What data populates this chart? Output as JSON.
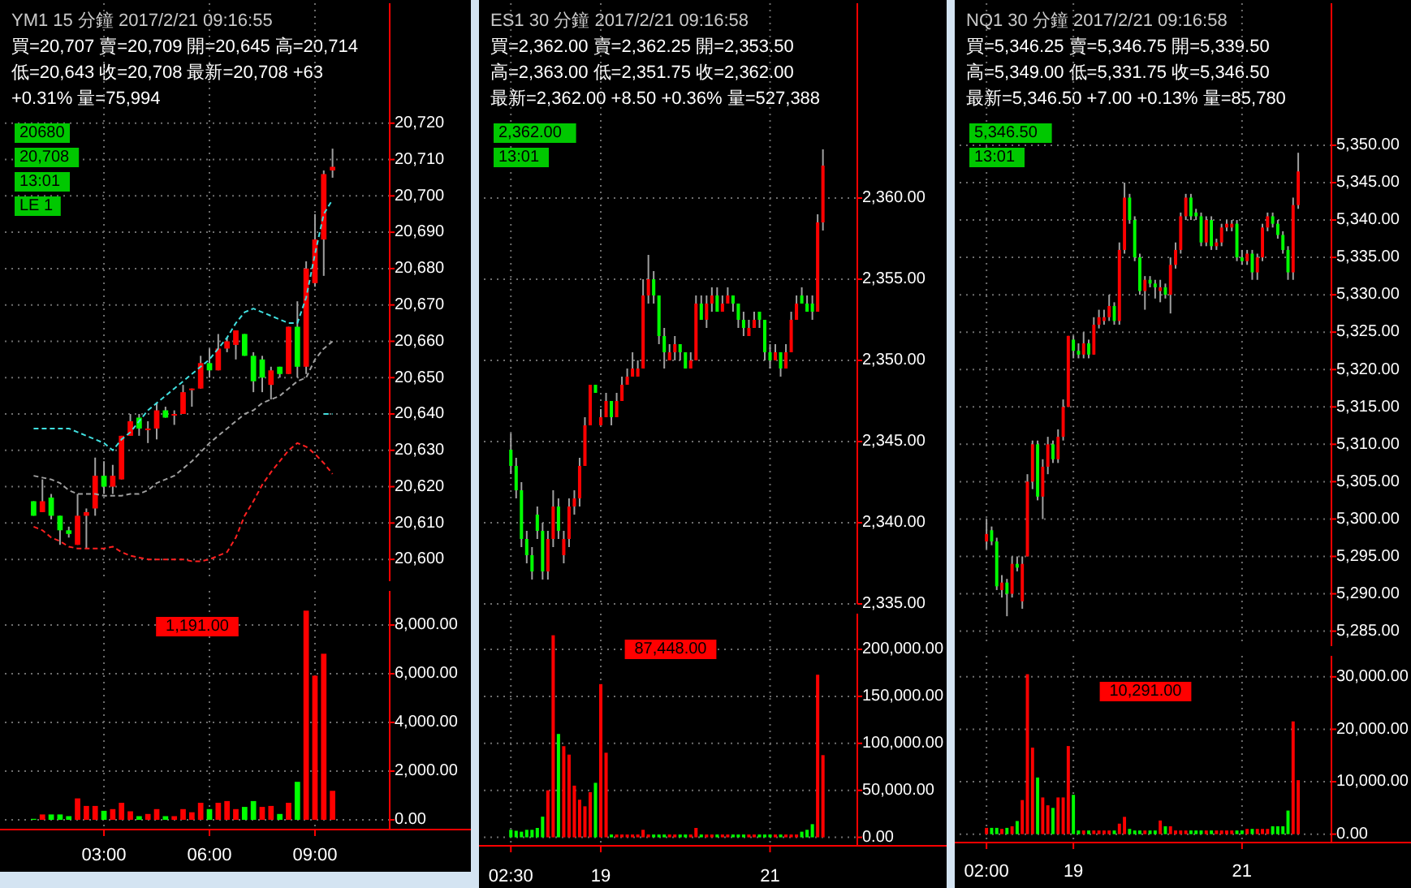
{
  "chart_data": [
    {
      "type": "other",
      "title": "YM1 15 分鐘 2017/2/21 09:16:55",
      "annotations": [
        "買=20,707 賣=20,709 開=20,645 高=20,714",
        "低=20,643 收=20,708 最新=20,708 +63",
        "+0.31% 量=75,994"
      ]
    },
    {
      "type": "candlestick",
      "annotations": [
        "20680",
        "20,708",
        "13:01",
        "LE 1"
      ],
      "categories": [
        null,
        null,
        null,
        null,
        null,
        null,
        null,
        null,
        null,
        null,
        null,
        null,
        null,
        null,
        null,
        null,
        null,
        null,
        null,
        null,
        null,
        null,
        null,
        null,
        null,
        null,
        null,
        null,
        null,
        null,
        null,
        null,
        null,
        null,
        null
      ],
      "ohlc": [
        [
          20616,
          20616,
          20612,
          20612
        ],
        [
          20613,
          20622,
          20613,
          20616
        ],
        [
          20617,
          20618,
          20611,
          20612
        ],
        [
          20612,
          20612,
          20604,
          20608
        ],
        [
          20608,
          20609,
          20606,
          20607
        ],
        [
          20604,
          20618,
          20604,
          20612
        ],
        [
          20612,
          20614,
          20603,
          20613
        ],
        [
          20614,
          20628,
          20612,
          20623
        ],
        [
          20623,
          20627,
          20618,
          20620
        ],
        [
          20620,
          20626,
          20618,
          20623
        ],
        [
          20622,
          20634,
          20622,
          20634
        ],
        [
          20634,
          20640,
          20634,
          20638
        ],
        [
          20639,
          20640,
          20634,
          20636
        ],
        [
          20636,
          20638,
          20632,
          20636
        ],
        [
          20636,
          20643,
          20633,
          20641
        ],
        [
          20641,
          20642,
          20639,
          20639
        ],
        [
          20640,
          20641,
          20637,
          20640
        ],
        [
          20640,
          20648,
          20640,
          20646
        ],
        [
          20647,
          20647,
          20642,
          20647
        ],
        [
          20647,
          20656,
          20647,
          20654
        ],
        [
          20654,
          20658,
          20650,
          20652
        ],
        [
          20652,
          20662,
          20652,
          20658
        ],
        [
          20658,
          20661,
          20657,
          20660
        ],
        [
          20659,
          20663,
          20655,
          20663
        ],
        [
          20662,
          20662,
          20656,
          20656
        ],
        [
          20656,
          20657,
          20646,
          20649
        ],
        [
          20655,
          20656,
          20646,
          20650
        ],
        [
          20648,
          20653,
          20644,
          20652
        ],
        [
          20653,
          20653,
          20650,
          20651
        ],
        [
          20651,
          20664,
          20651,
          20664
        ],
        [
          20664,
          20671,
          20650,
          20653
        ],
        [
          20653,
          20682,
          20651,
          20680
        ],
        [
          20676,
          20695,
          20675,
          20688
        ],
        [
          20688,
          20707,
          20678,
          20706
        ],
        [
          20707,
          20713,
          20705,
          20708
        ]
      ],
      "series": [
        {
          "type": "line",
          "color": "#40e0e0",
          "values": [
            20636,
            20636,
            20636,
            20636,
            20636,
            20635,
            20634,
            20633,
            20632,
            20630,
            20633,
            20635,
            20638,
            20641,
            20643,
            20645,
            20647,
            20649,
            20651,
            20653,
            20655,
            20658,
            20661,
            20665,
            20668,
            20669,
            20668,
            20667,
            20666,
            20665,
            20665,
            20672,
            20684,
            20695,
            20699
          ]
        },
        {
          "type": "line",
          "color": "#40e0e0",
          "values": [
            null,
            null,
            null,
            null,
            null,
            null,
            null,
            null,
            null,
            null,
            null,
            null,
            null,
            null,
            null,
            null,
            null,
            null,
            null,
            null,
            null,
            null,
            null,
            null,
            null,
            null,
            null,
            null,
            null,
            null,
            null,
            null,
            null,
            20640,
            20640
          ]
        },
        {
          "type": "line",
          "color": "#a0a0a0",
          "values": [
            20623,
            20622.5,
            20622,
            20621,
            20619,
            20618,
            20618,
            20618,
            20617.5,
            20617.5,
            20617.5,
            20618,
            20618,
            20619,
            20621,
            20622,
            20623,
            20625,
            20627,
            20629.5,
            20632,
            20634,
            20636,
            20638,
            20640,
            20641,
            20643,
            20644,
            20645,
            20647,
            20649,
            20650,
            20655,
            20658,
            20660
          ]
        },
        {
          "type": "line",
          "color": "#ff2020",
          "values": [
            20609,
            20608,
            20606,
            20605,
            20603.5,
            20603,
            20603,
            20603,
            20603,
            20603.5,
            20602,
            20601,
            20600.5,
            20600,
            20600,
            20600,
            20600,
            20600,
            20599.5,
            20599.5,
            20600,
            20601,
            20602,
            20606,
            20612,
            20616,
            20620.5,
            20624,
            20627,
            20630,
            20632,
            20631,
            20629,
            20626.5,
            20623.5
          ]
        }
      ],
      "line_style": "dashed",
      "ylim": [
        20594,
        20753
      ],
      "yticks": [
        {
          "value": 20600,
          "label": "20,600"
        },
        {
          "value": 20610,
          "label": "20,610"
        },
        {
          "value": 20620,
          "label": "20,620"
        },
        {
          "value": 20630,
          "label": "20,630"
        },
        {
          "value": 20640,
          "label": "20,640"
        },
        {
          "value": 20650,
          "label": "20,650"
        },
        {
          "value": 20660,
          "label": "20,660"
        },
        {
          "value": 20670,
          "label": "20,670"
        },
        {
          "value": 20680,
          "label": "20,680"
        },
        {
          "value": 20690,
          "label": "20,690"
        },
        {
          "value": 20700,
          "label": "20,700"
        },
        {
          "value": 20710,
          "label": "20,710"
        },
        {
          "value": 20720,
          "label": "20,720"
        }
      ],
      "tick_labels": "y",
      "grid": true
    },
    {
      "type": "bar",
      "categories": [
        null,
        null,
        null,
        null,
        null,
        null,
        null,
        null,
        "03:00",
        null,
        null,
        null,
        null,
        null,
        null,
        null,
        null,
        null,
        null,
        null,
        "06:00",
        null,
        null,
        null,
        null,
        null,
        null,
        null,
        null,
        null,
        null,
        null,
        "09:00",
        null,
        null
      ],
      "values": [
        40,
        220,
        220,
        220,
        150,
        880,
        570,
        570,
        370,
        440,
        700,
        350,
        150,
        240,
        440,
        150,
        150,
        440,
        310,
        700,
        440,
        700,
        770,
        440,
        530,
        770,
        530,
        570,
        240,
        700,
        1560,
        8590,
        5920,
        6820,
        1191
      ],
      "colors": [
        "#00ff00",
        "#ff0000",
        "#00ff00",
        "#00ff00",
        "#00ff00",
        "#ff0000",
        "#ff0000",
        "#ff0000",
        "#00ff00",
        "#ff0000",
        "#ff0000",
        "#ff0000",
        "#00ff00",
        "#ff0000",
        "#ff0000",
        "#00ff00",
        "#ff0000",
        "#ff0000",
        "#ff0000",
        "#ff0000",
        "#00ff00",
        "#ff0000",
        "#ff0000",
        "#ff0000",
        "#00ff00",
        "#00ff00",
        "#ff0000",
        "#ff0000",
        "#00ff00",
        "#ff0000",
        "#00ff00",
        "#ff0000",
        "#ff0000",
        "#ff0000",
        "#ff0000"
      ],
      "annotations": [
        "1,191.00"
      ],
      "ylim": [
        -400,
        9400
      ],
      "yticks": [
        {
          "value": 0,
          "label": "0.00"
        },
        {
          "value": 2000,
          "label": "2,000.00"
        },
        {
          "value": 4000,
          "label": "4,000.00"
        },
        {
          "value": 6000,
          "label": "6,000.00"
        },
        {
          "value": 8000,
          "label": "8,000.00"
        }
      ],
      "grid": true
    },
    {
      "type": "other",
      "title": "ES1 30 分鐘 2017/2/21 09:16:58",
      "annotations": [
        "買=2,362.00 賣=2,362.25 開=2,353.50",
        "高=2,363.00 低=2,351.75 收=2,362.00",
        "最新=2,362.00 +8.50 +0.36% 量=527,388"
      ]
    },
    {
      "type": "candlestick",
      "annotations": [
        "2,362.00",
        "13:01"
      ],
      "categories": [
        null,
        null,
        null,
        null,
        null,
        null,
        null,
        null,
        null,
        null,
        null,
        null,
        null,
        null,
        null,
        null,
        null,
        null,
        null,
        null,
        null,
        null,
        null,
        null,
        null,
        null,
        null,
        null,
        null,
        null,
        null,
        null,
        null,
        null,
        null,
        null,
        null,
        null,
        null,
        null,
        null,
        null,
        null,
        null,
        null,
        null,
        null,
        null,
        null,
        null,
        null,
        null,
        null,
        null,
        null,
        null,
        null,
        null,
        null,
        null
      ],
      "ohlc": [
        [
          2344.5,
          2345.5,
          2343,
          2343.5
        ],
        [
          2343.5,
          2344,
          2341.5,
          2342
        ],
        [
          2342,
          2342.5,
          2338.5,
          2339
        ],
        [
          2339,
          2339.5,
          2337.5,
          2338
        ],
        [
          2338,
          2338.5,
          2336.5,
          2337
        ],
        [
          2340.5,
          2341,
          2339,
          2339.5
        ],
        [
          2339.5,
          2340,
          2336.5,
          2337
        ],
        [
          2337,
          2339.5,
          2336.5,
          2339
        ],
        [
          2339,
          2342,
          2338.5,
          2341
        ],
        [
          2341,
          2341.5,
          2339,
          2339.5
        ],
        [
          2338,
          2339.5,
          2337.5,
          2339
        ],
        [
          2339,
          2341.5,
          2338.5,
          2341
        ],
        [
          2341,
          2342,
          2340.5,
          2341.5
        ],
        [
          2341.5,
          2344,
          2341,
          2343.5
        ],
        [
          2343.5,
          2346.5,
          2343.5,
          2346
        ],
        [
          2346,
          2348.5,
          2346,
          2348.5
        ],
        [
          2348.5,
          2348.5,
          2348,
          2348
        ],
        [
          2346,
          2347,
          2346,
          2346.5
        ],
        [
          2346.5,
          2348,
          2346.5,
          2347.5
        ],
        [
          2347.5,
          2347.5,
          2346,
          2346.5
        ],
        [
          2346.5,
          2348,
          2346.5,
          2347.5
        ],
        [
          2347.5,
          2349,
          2347.5,
          2348.5
        ],
        [
          2348.5,
          2349.5,
          2348.5,
          2349
        ],
        [
          2349,
          2350.5,
          2349,
          2349.5
        ],
        [
          2349,
          2350,
          2349,
          2349.5
        ],
        [
          2349.5,
          2355,
          2349.5,
          2354
        ],
        [
          2354,
          2356.5,
          2353.5,
          2355
        ],
        [
          2355,
          2355.5,
          2353.5,
          2354
        ],
        [
          2354,
          2354,
          2351,
          2351.5
        ],
        [
          2351.5,
          2352,
          2349.5,
          2350.5
        ],
        [
          2350,
          2351,
          2350,
          2350.5
        ],
        [
          2350.5,
          2351.5,
          2350,
          2351
        ],
        [
          2351,
          2351,
          2350,
          2350.5
        ],
        [
          2350.5,
          2350.5,
          2349.5,
          2349.5
        ],
        [
          2349.5,
          2350.5,
          2349.5,
          2350
        ],
        [
          2350,
          2354,
          2350,
          2353.5
        ],
        [
          2353.5,
          2354,
          2352.5,
          2352.5
        ],
        [
          2352.5,
          2354,
          2352,
          2353.5
        ],
        [
          2353.5,
          2354.5,
          2353,
          2354
        ],
        [
          2354,
          2354.5,
          2353,
          2353
        ],
        [
          2353,
          2354,
          2353,
          2353.5
        ],
        [
          2353.5,
          2354.5,
          2353.5,
          2354
        ],
        [
          2354,
          2354,
          2353,
          2353.5
        ],
        [
          2353.5,
          2353.5,
          2352,
          2352.5
        ],
        [
          2352.5,
          2353,
          2351.5,
          2352
        ],
        [
          2351.5,
          2352.5,
          2351.5,
          2352
        ],
        [
          2352,
          2353,
          2352,
          2352.5
        ],
        [
          2353,
          2353,
          2352,
          2352.5
        ],
        [
          2352.5,
          2352.5,
          2350,
          2350.5
        ],
        [
          2350.5,
          2351,
          2349.5,
          2350
        ],
        [
          2350,
          2351,
          2350,
          2350.5
        ],
        [
          2350.5,
          2350.5,
          2349,
          2349.5
        ],
        [
          2349.5,
          2351,
          2349.5,
          2350.5
        ],
        [
          2350.5,
          2353,
          2350.5,
          2352.5
        ],
        [
          2352.5,
          2354,
          2352.5,
          2353.5
        ],
        [
          2354,
          2354.5,
          2353.5,
          2353.5
        ],
        [
          2353.5,
          2354,
          2353,
          2353
        ],
        [
          2353.5,
          2354,
          2352.5,
          2353
        ],
        [
          2353,
          2359,
          2353,
          2358.5
        ],
        [
          2358.5,
          2363,
          2358,
          2362
        ]
      ],
      "ylim": [
        2335,
        2372
      ],
      "yticks": [
        {
          "value": 2335,
          "label": "2,335.00"
        },
        {
          "value": 2340,
          "label": "2,340.00"
        },
        {
          "value": 2345,
          "label": "2,345.00"
        },
        {
          "value": 2350,
          "label": "2,350.00"
        },
        {
          "value": 2355,
          "label": "2,355.00"
        },
        {
          "value": 2360,
          "label": "2,360.00"
        }
      ],
      "tick_labels": "y",
      "grid": true
    },
    {
      "type": "bar",
      "categories": [
        "02:30",
        null,
        null,
        null,
        null,
        null,
        null,
        null,
        null,
        null,
        null,
        null,
        null,
        null,
        null,
        null,
        null,
        "19",
        null,
        null,
        null,
        null,
        null,
        null,
        null,
        null,
        null,
        null,
        null,
        null,
        null,
        null,
        null,
        null,
        null,
        null,
        null,
        null,
        null,
        null,
        null,
        null,
        null,
        null,
        null,
        null,
        null,
        null,
        null,
        "21",
        null,
        null,
        null,
        null,
        null,
        null,
        null,
        null,
        null,
        null
      ],
      "values": [
        8000,
        7000,
        6000,
        8000,
        8000,
        10000,
        22000,
        50000,
        215000,
        110000,
        97000,
        88000,
        55000,
        40000,
        33000,
        48000,
        58000,
        163000,
        90000,
        3000,
        3000,
        3000,
        3000,
        3000,
        3000,
        8000,
        3000,
        3000,
        3000,
        3000,
        3000,
        3000,
        3000,
        3000,
        3000,
        10000,
        3000,
        3000,
        3000,
        3000,
        3000,
        3000,
        3000,
        3000,
        3000,
        3000,
        3000,
        3000,
        3000,
        3000,
        3000,
        3000,
        3000,
        3000,
        3000,
        6000,
        8000,
        14000,
        173000,
        87448
      ],
      "colors": [
        "#00ff00",
        "#00ff00",
        "#00ff00",
        "#00ff00",
        "#00ff00",
        "#00ff00",
        "#00ff00",
        "#ff0000",
        "#ff0000",
        "#00ff00",
        "#ff0000",
        "#ff0000",
        "#ff0000",
        "#ff0000",
        "#ff0000",
        "#ff0000",
        "#00ff00",
        "#ff0000",
        "#ff0000",
        "#00ff00",
        "#ff0000",
        "#ff0000",
        "#ff0000",
        "#ff0000",
        "#ff0000",
        "#ff0000",
        "#ff0000",
        "#00ff00",
        "#00ff00",
        "#00ff00",
        "#ff0000",
        "#ff0000",
        "#00ff00",
        "#00ff00",
        "#ff0000",
        "#ff0000",
        "#00ff00",
        "#ff0000",
        "#ff0000",
        "#00ff00",
        "#ff0000",
        "#ff0000",
        "#00ff00",
        "#00ff00",
        "#00ff00",
        "#ff0000",
        "#ff0000",
        "#00ff00",
        "#00ff00",
        "#00ff00",
        "#ff0000",
        "#00ff00",
        "#ff0000",
        "#ff0000",
        "#ff0000",
        "#00ff00",
        "#00ff00",
        "#00ff00",
        "#ff0000",
        "#ff0000"
      ],
      "annotations": [
        "87,448.00"
      ],
      "ylim": [
        -9000,
        238000
      ],
      "yticks": [
        {
          "value": 0,
          "label": "0.00"
        },
        {
          "value": 50000,
          "label": "50,000.00"
        },
        {
          "value": 100000,
          "label": "100,000.00"
        },
        {
          "value": 150000,
          "label": "150,000.00"
        },
        {
          "value": 200000,
          "label": "200,000.00"
        }
      ],
      "grid": true
    },
    {
      "type": "other",
      "title": "NQ1 30 分鐘 2017/2/21 09:16:58",
      "annotations": [
        "買=5,346.25 賣=5,346.75 開=5,339.50",
        "高=5,349.00 低=5,331.75 收=5,346.50",
        "最新=5,346.50 +7.00 +0.13% 量=85,780"
      ]
    },
    {
      "type": "candlestick",
      "annotations": [
        "5,346.50",
        "13:01"
      ],
      "categories": [
        null,
        null,
        null,
        null,
        null,
        null,
        null,
        null,
        null,
        null,
        null,
        null,
        null,
        null,
        null,
        null,
        null,
        null,
        null,
        null,
        null,
        null,
        null,
        null,
        null,
        null,
        null,
        null,
        null,
        null,
        null,
        null,
        null,
        null,
        null,
        null,
        null,
        null,
        null,
        null,
        null,
        null,
        null,
        null,
        null,
        null,
        null,
        null,
        null,
        null,
        null,
        null,
        null,
        null,
        null,
        null,
        null,
        null,
        null,
        null,
        null,
        null
      ],
      "ohlc": [
        [
          5297,
          5300,
          5296,
          5298
        ],
        [
          5298.5,
          5299,
          5296.5,
          5297
        ],
        [
          5297,
          5297.5,
          5290.5,
          5291
        ],
        [
          5290.5,
          5292.5,
          5289.5,
          5291.5
        ],
        [
          5291.5,
          5292,
          5287,
          5290
        ],
        [
          5290,
          5295,
          5289.5,
          5294
        ],
        [
          5294,
          5295,
          5293,
          5293.5
        ],
        [
          5289,
          5295,
          5288,
          5294
        ],
        [
          5295,
          5306,
          5295,
          5305
        ],
        [
          5305,
          5310.5,
          5304,
          5310
        ],
        [
          5310,
          5310.5,
          5302.5,
          5303
        ],
        [
          5303,
          5308,
          5300,
          5307
        ],
        [
          5307,
          5311,
          5306,
          5310
        ],
        [
          5310,
          5310.5,
          5307.5,
          5308
        ],
        [
          5308,
          5312,
          5307.5,
          5311
        ],
        [
          5311,
          5316,
          5310.5,
          5315
        ],
        [
          5315,
          5324.5,
          5315,
          5324.5
        ],
        [
          5324,
          5324.5,
          5321.5,
          5322.5
        ],
        [
          5322.5,
          5323.5,
          5321.5,
          5322
        ],
        [
          5322,
          5325,
          5321.5,
          5323.5
        ],
        [
          5323.5,
          5324,
          5321.5,
          5322
        ],
        [
          5322,
          5327,
          5322,
          5326
        ],
        [
          5326,
          5328,
          5325.5,
          5327
        ],
        [
          5326.5,
          5328,
          5326,
          5327
        ],
        [
          5327,
          5330,
          5326.5,
          5328.5
        ],
        [
          5328.5,
          5329,
          5326,
          5326.5
        ],
        [
          5326.5,
          5337,
          5326,
          5336
        ],
        [
          5336,
          5345,
          5335.5,
          5343
        ],
        [
          5343,
          5343.5,
          5339.5,
          5340
        ],
        [
          5340,
          5340.5,
          5334.5,
          5335
        ],
        [
          5335,
          5335.5,
          5330,
          5330.5
        ],
        [
          5330.5,
          5332.5,
          5328,
          5332
        ],
        [
          5332,
          5332.5,
          5331,
          5331.5
        ],
        [
          5331.5,
          5332,
          5329.5,
          5331
        ],
        [
          5330.5,
          5332,
          5329,
          5331
        ],
        [
          5331,
          5331.5,
          5329.5,
          5330
        ],
        [
          5330,
          5335,
          5327.5,
          5334
        ],
        [
          5334,
          5337,
          5333.5,
          5336
        ],
        [
          5336,
          5341,
          5335.5,
          5340.5
        ],
        [
          5340.5,
          5343.5,
          5340,
          5343
        ],
        [
          5343,
          5343.5,
          5340,
          5340.5
        ],
        [
          5341,
          5341.5,
          5340,
          5340.5
        ],
        [
          5340.5,
          5341,
          5336.5,
          5337
        ],
        [
          5337,
          5340.5,
          5336.5,
          5340
        ],
        [
          5340,
          5340.5,
          5336,
          5336.5
        ],
        [
          5336.5,
          5337.5,
          5336,
          5337
        ],
        [
          5337,
          5339.5,
          5336.5,
          5339
        ],
        [
          5339,
          5340,
          5338.5,
          5339.5
        ],
        [
          5339,
          5340,
          5338.5,
          5339.5
        ],
        [
          5339.5,
          5340,
          5334.5,
          5335
        ],
        [
          5335,
          5336,
          5334,
          5334.5
        ],
        [
          5334.5,
          5336,
          5334,
          5335.5
        ],
        [
          5335.5,
          5336,
          5332,
          5333
        ],
        [
          5333,
          5335.5,
          5332,
          5335
        ],
        [
          5335,
          5339.5,
          5334.5,
          5339
        ],
        [
          5339,
          5341,
          5338.5,
          5340.5
        ],
        [
          5340.5,
          5341,
          5339,
          5339.5
        ],
        [
          5339.5,
          5340,
          5337.5,
          5338
        ],
        [
          5338,
          5338.5,
          5335.5,
          5336
        ],
        [
          5336,
          5336.5,
          5332,
          5333
        ],
        [
          5333,
          5343,
          5332,
          5342
        ],
        [
          5342,
          5349,
          5341.5,
          5346.5
        ]
      ],
      "ylim": [
        5283,
        5369
      ],
      "yticks": [
        {
          "value": 5285,
          "label": "5,285.00"
        },
        {
          "value": 5290,
          "label": "5,290.00"
        },
        {
          "value": 5295,
          "label": "5,295.00"
        },
        {
          "value": 5300,
          "label": "5,300.00"
        },
        {
          "value": 5305,
          "label": "5,305.00"
        },
        {
          "value": 5310,
          "label": "5,310.00"
        },
        {
          "value": 5315,
          "label": "5,315.00"
        },
        {
          "value": 5320,
          "label": "5,320.00"
        },
        {
          "value": 5325,
          "label": "5,325.00"
        },
        {
          "value": 5330,
          "label": "5,330.00"
        },
        {
          "value": 5335,
          "label": "5,335.00"
        },
        {
          "value": 5340,
          "label": "5,340.00"
        },
        {
          "value": 5345,
          "label": "5,345.00"
        },
        {
          "value": 5350,
          "label": "5,350.00"
        }
      ],
      "tick_labels": "y",
      "grid": true
    },
    {
      "type": "bar",
      "categories": [
        "02:00",
        null,
        null,
        null,
        null,
        null,
        null,
        null,
        null,
        null,
        null,
        null,
        null,
        null,
        null,
        null,
        null,
        "19",
        null,
        null,
        null,
        null,
        null,
        null,
        null,
        null,
        null,
        null,
        null,
        null,
        null,
        null,
        null,
        null,
        null,
        null,
        null,
        null,
        null,
        null,
        null,
        null,
        null,
        null,
        null,
        null,
        null,
        null,
        null,
        null,
        "21",
        null,
        null,
        null,
        null,
        null,
        null,
        null,
        null,
        null,
        null,
        null
      ],
      "values": [
        1200,
        1200,
        1200,
        1000,
        1200,
        1500,
        2500,
        6500,
        30500,
        16500,
        10800,
        7000,
        5500,
        5000,
        7000,
        7000,
        16800,
        7500,
        700,
        700,
        700,
        700,
        700,
        700,
        700,
        700,
        2000,
        3300,
        1000,
        700,
        700,
        700,
        700,
        700,
        2600,
        1500,
        1500,
        700,
        700,
        700,
        700,
        700,
        700,
        700,
        700,
        700,
        700,
        700,
        700,
        700,
        700,
        1000,
        1000,
        1000,
        1000,
        1000,
        1500,
        1500,
        1500,
        4500,
        21500,
        10291
      ],
      "colors": [
        "#ff0000",
        "#00ff00",
        "#00ff00",
        "#ff0000",
        "#00ff00",
        "#ff0000",
        "#00ff00",
        "#ff0000",
        "#ff0000",
        "#ff0000",
        "#00ff00",
        "#ff0000",
        "#ff0000",
        "#00ff00",
        "#ff0000",
        "#ff0000",
        "#ff0000",
        "#00ff00",
        "#00ff00",
        "#ff0000",
        "#00ff00",
        "#ff0000",
        "#ff0000",
        "#ff0000",
        "#ff0000",
        "#00ff00",
        "#ff0000",
        "#ff0000",
        "#00ff00",
        "#00ff00",
        "#00ff00",
        "#ff0000",
        "#00ff00",
        "#00ff00",
        "#ff0000",
        "#00ff00",
        "#ff0000",
        "#ff0000",
        "#ff0000",
        "#ff0000",
        "#00ff00",
        "#00ff00",
        "#00ff00",
        "#ff0000",
        "#00ff00",
        "#ff0000",
        "#ff0000",
        "#ff0000",
        "#ff0000",
        "#00ff00",
        "#00ff00",
        "#ff0000",
        "#00ff00",
        "#ff0000",
        "#ff0000",
        "#ff0000",
        "#00ff00",
        "#00ff00",
        "#00ff00",
        "#00ff00",
        "#ff0000",
        "#ff0000"
      ],
      "annotations": [
        "10,291.00"
      ],
      "ylim": [
        -1600,
        34000
      ],
      "yticks": [
        {
          "value": 0,
          "label": "0.00"
        },
        {
          "value": 10000,
          "label": "10,000.00"
        },
        {
          "value": 20000,
          "label": "20,000.00"
        },
        {
          "value": 30000,
          "label": "30,000.00"
        }
      ],
      "grid": true
    }
  ]
}
